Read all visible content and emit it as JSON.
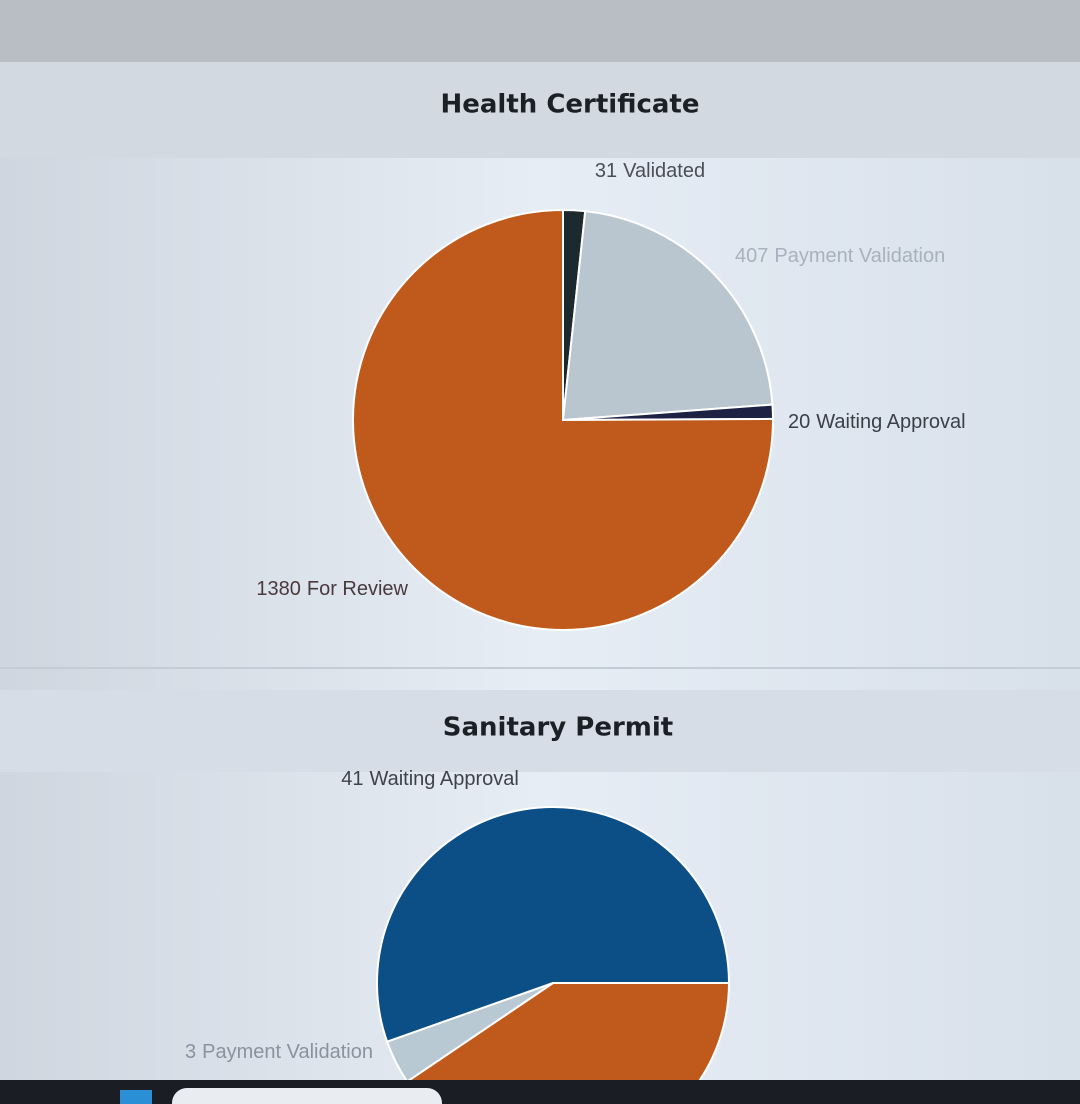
{
  "chart_data": [
    {
      "type": "pie",
      "title": "Health Certificate",
      "categories": [
        "Validated",
        "Payment Validation",
        "Waiting Approval",
        "For Review"
      ],
      "values": [
        31,
        407,
        20,
        1380
      ],
      "colors": [
        "#1c2a2e",
        "#b9c6d0",
        "#1d2244",
        "#c05a1c"
      ]
    },
    {
      "type": "pie",
      "title": "Sanitary Permit",
      "categories": [
        null,
        "Payment Validation",
        "Waiting Approval"
      ],
      "values": [
        30,
        3,
        41
      ],
      "colors": [
        "#c05a1c",
        "#b9c9d4",
        "#0c4f86"
      ]
    }
  ]
}
